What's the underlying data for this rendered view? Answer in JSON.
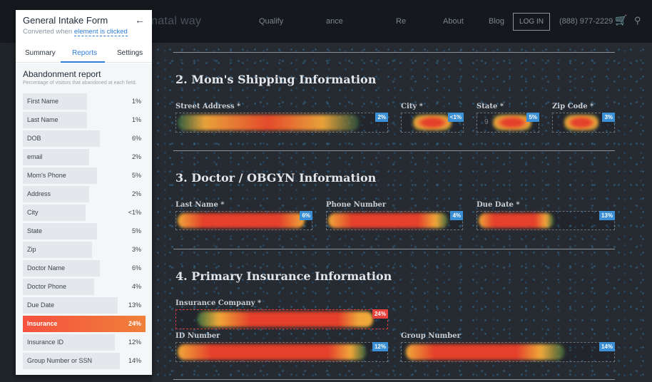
{
  "site_nav": {
    "logo": "natal way",
    "links": [
      "Qualify",
      "ance",
      "Re",
      "About",
      "Blog"
    ],
    "login": "LOG IN",
    "phone": "(888) 977-2229",
    "cart_icon": "cart-icon",
    "search_icon": "search-icon"
  },
  "sections": {
    "shipping": {
      "title": "2. Mom's Shipping Information",
      "fields": [
        {
          "label": "Street Address *",
          "pct": "2%"
        },
        {
          "label": "City *",
          "pct": "<1%"
        },
        {
          "label": "State *",
          "pct": "5%",
          "value": "9"
        },
        {
          "label": "Zip Code *",
          "pct": "3%"
        }
      ]
    },
    "doctor": {
      "title": "3. Doctor / OBGYN Information",
      "fields": [
        {
          "label": "Last Name *",
          "pct": "6%"
        },
        {
          "label": "Phone Number",
          "pct": "4%"
        },
        {
          "label": "Due Date *",
          "pct": "13%"
        }
      ]
    },
    "insurance": {
      "title": "4. Primary Insurance Information",
      "fields": [
        {
          "label": "Insurance Company *",
          "pct": "24%"
        },
        {
          "label": "ID Number",
          "pct": "12%"
        },
        {
          "label": "Group Number",
          "pct": "14%"
        }
      ]
    }
  },
  "panel": {
    "title": "General Intake Form",
    "subtitle_prefix": "Converted when",
    "subtitle_link": "element is clicked",
    "back_icon": "back-arrow-icon",
    "tabs": [
      "Summary",
      "Reports",
      "Settings"
    ],
    "active_tab": "Reports",
    "report": {
      "title": "Abandonment report",
      "description": "Percentage of visitors that abandoned at each field.",
      "rows": [
        {
          "name": "First Name",
          "pct": "1%",
          "value": 1
        },
        {
          "name": "Last Name",
          "pct": "1%",
          "value": 1
        },
        {
          "name": "DOB",
          "pct": "6%",
          "value": 6
        },
        {
          "name": "email",
          "pct": "2%",
          "value": 2
        },
        {
          "name": "Mom's Phone",
          "pct": "5%",
          "value": 5
        },
        {
          "name": "Address",
          "pct": "2%",
          "value": 2
        },
        {
          "name": "City",
          "pct": "<1%",
          "value": 0.5
        },
        {
          "name": "State",
          "pct": "5%",
          "value": 5
        },
        {
          "name": "Zip",
          "pct": "3%",
          "value": 3
        },
        {
          "name": "Doctor Name",
          "pct": "6%",
          "value": 6
        },
        {
          "name": "Doctor Phone",
          "pct": "4%",
          "value": 4
        },
        {
          "name": "Due Date",
          "pct": "13%",
          "value": 13
        },
        {
          "name": "Insurance",
          "pct": "24%",
          "value": 24
        },
        {
          "name": "Insurance ID",
          "pct": "12%",
          "value": 12
        },
        {
          "name": "Group Number or SSN",
          "pct": "14%",
          "value": 14
        }
      ],
      "highlighted_row": "Insurance"
    }
  },
  "colors": {
    "accent": "#2f7ed8",
    "highlight": "#f5513f",
    "badge_blue": "#3b8fd4",
    "badge_red": "#e6423c"
  }
}
